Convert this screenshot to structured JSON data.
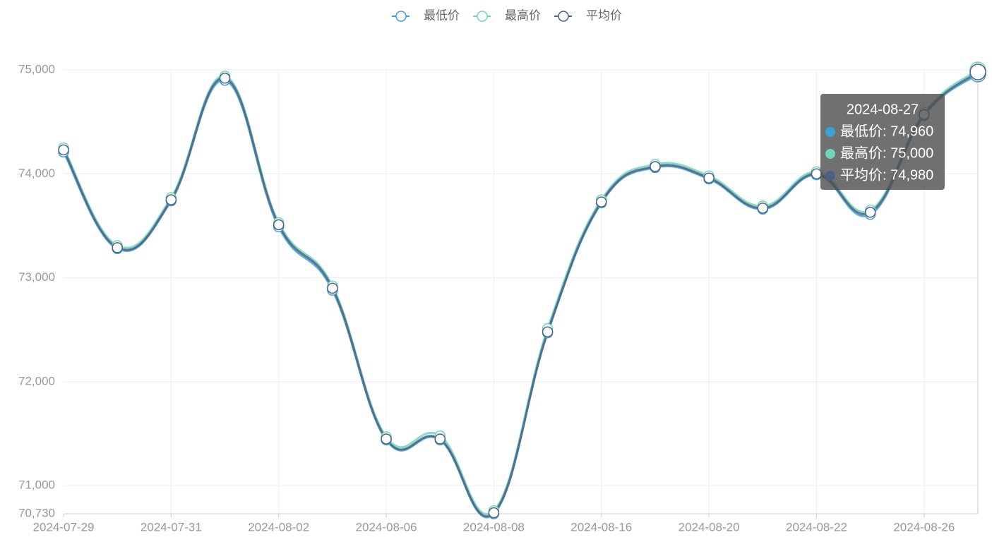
{
  "chart_data": {
    "type": "line",
    "categories": [
      "2024-07-29",
      null,
      "2024-07-31",
      null,
      "2024-08-02",
      null,
      "2024-08-06",
      null,
      "2024-08-08",
      null,
      "2024-08-16",
      null,
      "2024-08-20",
      null,
      "2024-08-22",
      null,
      "2024-08-26",
      "2024-08-27"
    ],
    "series": [
      {
        "name": "最低价",
        "color": "#3ba2d8",
        "values": [
          74210,
          73280,
          73740,
          74900,
          73490,
          72880,
          71440,
          71440,
          70730,
          72470,
          73720,
          74060,
          73950,
          73660,
          73990,
          73610,
          74560,
          74960
        ]
      },
      {
        "name": "最高价",
        "color": "#6dd8b7",
        "values": [
          74250,
          73310,
          73770,
          74940,
          73530,
          72920,
          71470,
          71480,
          70760,
          72510,
          73750,
          74090,
          73980,
          73690,
          74020,
          73650,
          74590,
          75000
        ]
      },
      {
        "name": "平均价",
        "color": "#4e5f86",
        "values": [
          74230,
          73290,
          73750,
          74920,
          73510,
          72900,
          71450,
          71450,
          70740,
          72480,
          73730,
          74070,
          73960,
          73670,
          74000,
          73630,
          74570,
          74980
        ]
      }
    ],
    "ylim": [
      70730,
      75000
    ],
    "yticks": [
      {
        "value": 70730,
        "label": "70,730"
      },
      {
        "value": 71000,
        "label": "71,000"
      },
      {
        "value": 72000,
        "label": "72,000"
      },
      {
        "value": 73000,
        "label": "73,000"
      },
      {
        "value": 74000,
        "label": "74,000"
      },
      {
        "value": 75000,
        "label": "75,000"
      }
    ],
    "grid": true,
    "legend": "top",
    "smooth": true,
    "tooltip": {
      "index": 17,
      "rows": [
        "最低价: 74,960",
        "最高价: 75,000",
        "平均价: 74,980"
      ]
    }
  }
}
